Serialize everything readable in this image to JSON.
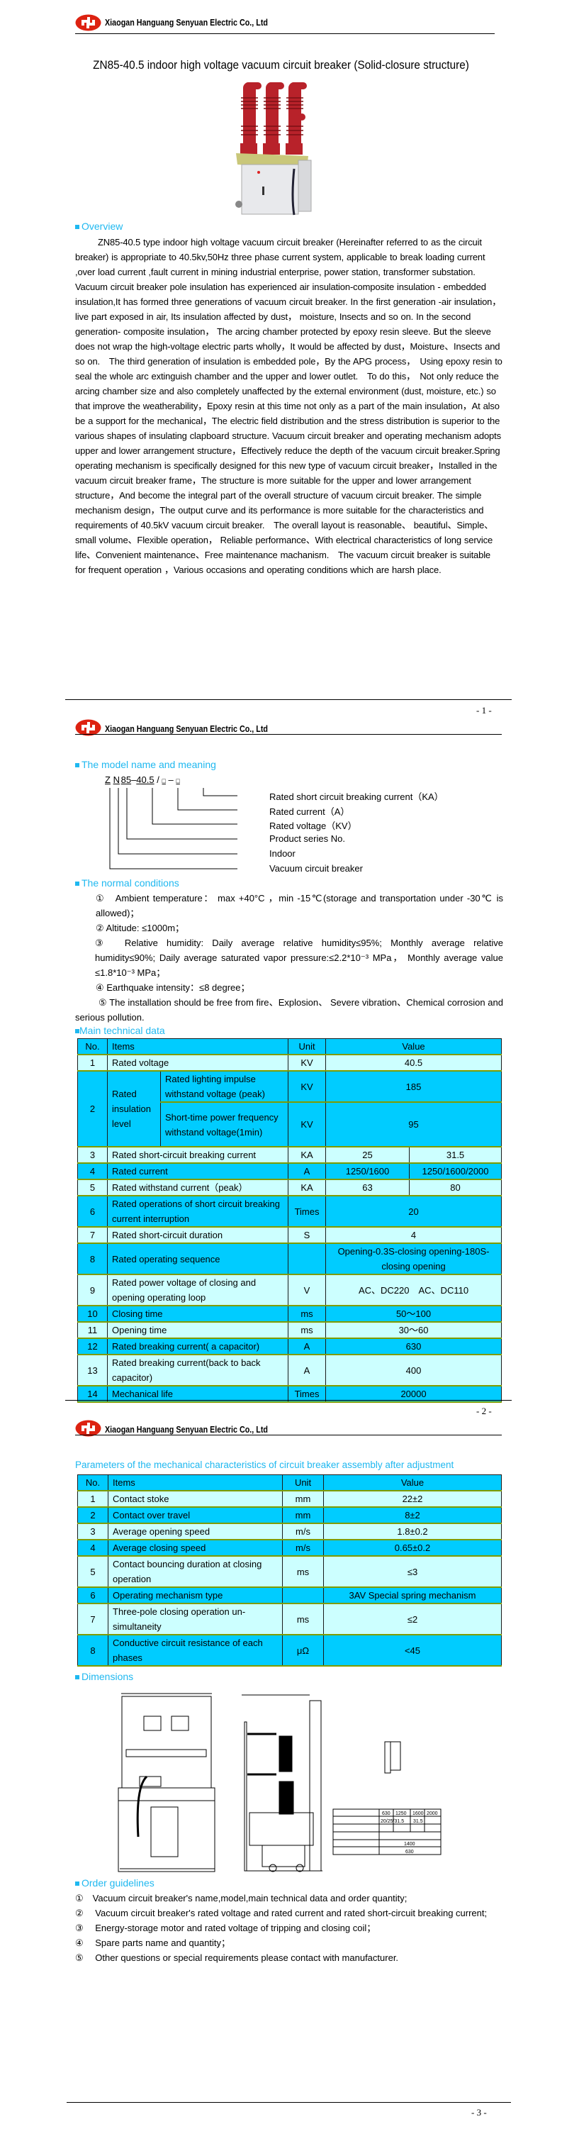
{
  "company": "Xiaogan Hanguang Senyuan Electric Co., Ltd",
  "colors": {
    "accent": "#1fb8f0",
    "logo": "#dd2211",
    "row_dark": "#00ccff",
    "row_light": "#ccffff"
  },
  "title": "ZN85-40.5 indoor high voltage vacuum circuit breaker (Solid-closure structure)",
  "overview": {
    "heading": "Overview",
    "text": "ZN85-40.5 type indoor high voltage vacuum circuit breaker (Hereinafter referred to as the circuit breaker) is appropriate to 40.5kv,50Hz three phase current system, applicable to break loading current ,over load current ,fault current in mining industrial enterprise, power station, transformer substation. Vacuum circuit breaker pole insulation has experienced air insulation-composite insulation - embedded insulation,It has formed three generations of vacuum circuit breaker. In the first generation -air insulation， live part exposed in air, Its insulation affected by dust， moisture, Insects and so on. In the second generation- composite insulation， The arcing chamber protected by epoxy resin sleeve. But the sleeve does not wrap the high-voltage electric parts wholly，It would be affected by dust，Moisture、Insects and so on.　The third generation of insulation is embedded pole，By the APG process，　Using epoxy resin to seal the whole arc extinguish chamber and the upper and lower outlet.　To do this，　Not only reduce the arcing chamber size and also completely unaffected by the external environment (dust, moisture, etc.) so that improve the weatherability，Epoxy resin at this time not only as a part of the main insulation，At also be a support for the mechanical，The electric field distribution and the stress distribution is superior to the various shapes of insulating clapboard structure. Vacuum circuit breaker and operating mechanism adopts upper and lower arrangement structure，Effectively reduce the depth of the vacuum circuit breaker.Spring operating mechanism is specifically designed for this new type of vacuum circuit breaker，Installed in the vacuum circuit breaker frame，The structure is more suitable for the upper and lower arrangement structure，And become the integral part of the overall structure of vacuum circuit breaker. The simple mechanism design，The output curve and its performance is more suitable for the characteristics and requirements of 40.5kV vacuum circuit breaker.　The overall layout is reasonable、 beautiful、Simple、small volume、Flexible operation， Reliable performance、With electrical characteristics of long service life、Convenient maintenance、Free maintenance machanism.　The vacuum circuit breaker is suitable for frequent operation ，Various occasions and operating conditions which are harsh place."
  },
  "pages": [
    "- 1 -",
    "- 2 -",
    "- 3 -"
  ],
  "model": {
    "heading": "The model name and meaning",
    "code": [
      "Z",
      "N",
      "85",
      "–",
      "40.5",
      "/",
      "□",
      "–",
      "□"
    ],
    "labels": [
      "Rated short circuit breaking current（KA）",
      "Rated current（A）",
      "Rated voltage（KV）",
      "Product series No.",
      "Indoor",
      "Vacuum circuit breaker"
    ]
  },
  "conditions": {
    "heading": "The normal conditions",
    "items": [
      "①　Ambient temperature： max +40°C ，min -15℃(storage and transportation under -30℃ is allowed)；",
      "② Altitude: ≤1000m；",
      "③　Relative humidity: Daily average relative humidity≤95%; Monthly average relative humidity≤90%; Daily average saturated vapor pressure:≤2.2*10⁻³ MPa， Monthly average value ≤1.8*10⁻³ MPa；",
      "④ Earthquake intensity：≤8 degree；",
      "⑤ The installation should be free from fire、Explosion、 Severe vibration、Chemical corrosion and serious pollution."
    ]
  },
  "main_table": {
    "heading": "Main technical data",
    "headers": [
      "No.",
      "Items",
      "Unit",
      "Value"
    ],
    "rows": [
      {
        "no": "1",
        "item": "Rated voltage",
        "unit": "KV",
        "value": "40.5"
      },
      {
        "no": "2",
        "group": "Rated insulation level",
        "sub": [
          {
            "item": "Rated lighting impulse withstand voltage (peak)",
            "unit": "KV",
            "value": "185"
          },
          {
            "item": "Short-time power frequency withstand voltage(1min)",
            "unit": "KV",
            "value": "95"
          }
        ]
      },
      {
        "no": "3",
        "item": "Rated short-circuit breaking current",
        "unit": "KA",
        "values": [
          "25",
          "31.5"
        ]
      },
      {
        "no": "4",
        "item": "Rated current",
        "unit": "A",
        "values": [
          "1250/1600",
          "1250/1600/2000"
        ]
      },
      {
        "no": "5",
        "item": "Rated withstand current（peak）",
        "unit": "KA",
        "values": [
          "63",
          "80"
        ]
      },
      {
        "no": "6",
        "item": "Rated operations of short circuit breaking current interruption",
        "unit": "Times",
        "value": "20"
      },
      {
        "no": "7",
        "item": "Rated short-circuit duration",
        "unit": "S",
        "value": "4"
      },
      {
        "no": "8",
        "item": "Rated operating sequence",
        "unit": "",
        "value": "Opening-0.3S-closing opening-180S-closing opening"
      },
      {
        "no": "9",
        "item": "Rated power voltage of closing and opening operating loop",
        "unit": "V",
        "value": "AC、DC220　AC、DC110"
      },
      {
        "no": "10",
        "item": "Closing time",
        "unit": "ms",
        "value": "50～100"
      },
      {
        "no": "11",
        "item": "Opening time",
        "unit": "ms",
        "value": "30～60"
      },
      {
        "no": "12",
        "item": "Rated breaking current( a capacitor)",
        "unit": "A",
        "value": "630"
      },
      {
        "no": "13",
        "item": "Rated breaking current(back to back capacitor)",
        "unit": "A",
        "value": "400"
      },
      {
        "no": "14",
        "item": "Mechanical life",
        "unit": "Times",
        "value": "20000"
      }
    ]
  },
  "mech_table": {
    "heading": "Parameters of the mechanical characteristics of circuit breaker assembly after adjustment",
    "headers": [
      "No.",
      "Items",
      "Unit",
      "Value"
    ],
    "rows": [
      {
        "no": "1",
        "item": "Contact stoke",
        "unit": "mm",
        "value": "22±2"
      },
      {
        "no": "2",
        "item": "Contact over travel",
        "unit": "mm",
        "value": "8±2"
      },
      {
        "no": "3",
        "item": "Average opening speed",
        "unit": "m/s",
        "value": "1.8±0.2"
      },
      {
        "no": "4",
        "item": "Average closing speed",
        "unit": "m/s",
        "value": "0.65±0.2"
      },
      {
        "no": "5",
        "item": "Contact bouncing duration at closing operation",
        "unit": "ms",
        "value": "≤3"
      },
      {
        "no": "6",
        "item": "Operating mechanism type",
        "unit": "",
        "value": "3AV Special spring mechanism"
      },
      {
        "no": "7",
        "item": "Three-pole closing operation un-simultaneity",
        "unit": "ms",
        "value": "≤2"
      },
      {
        "no": "8",
        "item": "Conductive circuit resistance of each phases",
        "unit": "μΩ",
        "value": "<45"
      }
    ]
  },
  "dimensions": {
    "heading": "Dimensions",
    "drawing_table": [
      [
        "630",
        "1250",
        "1600",
        "2000"
      ],
      [
        "20/25/31.5",
        "31.5"
      ],
      [
        "1400"
      ],
      [
        "630"
      ]
    ]
  },
  "order": {
    "heading": "Order guidelines",
    "items": [
      "①　Vacuum circuit breaker's name,model,main technical data and order quantity;",
      "②　 Vacuum circuit breaker's rated voltage and rated current and rated short-circuit breaking current;",
      "③　 Energy-storage motor and rated voltage of tripping and closing coil；",
      "④　 Spare parts name and quantity；",
      "⑤　 Other questions or special requirements please contact with manufacturer."
    ]
  }
}
